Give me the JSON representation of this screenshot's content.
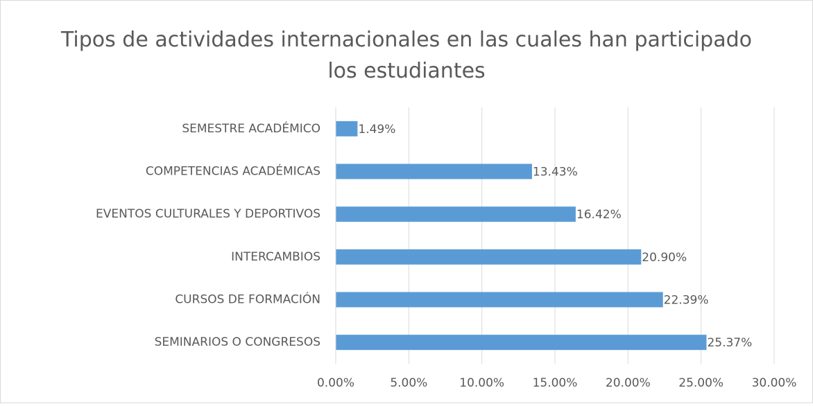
{
  "chart_data": {
    "type": "bar",
    "orientation": "horizontal",
    "title": "Tipos de actividades internacionales en las cuales han participado los estudiantes",
    "categories": [
      "SEMESTRE ACADÉMICO",
      "COMPETENCIAS ACADÉMICAS",
      "EVENTOS CULTURALES Y DEPORTIVOS",
      "INTERCAMBIOS",
      "CURSOS DE FORMACIÓN",
      "SEMINARIOS O CONGRESOS"
    ],
    "values": [
      1.49,
      13.43,
      16.42,
      20.9,
      22.39,
      25.37
    ],
    "value_labels": [
      "1.49%",
      "13.43%",
      "16.42%",
      "20.90%",
      "22.39%",
      "25.37%"
    ],
    "color": "#5b9bd5",
    "xlim": [
      0,
      30
    ],
    "xticks": [
      {
        "value": 0,
        "label": "0.00%"
      },
      {
        "value": 5,
        "label": "5.00%"
      },
      {
        "value": 10,
        "label": "10.00%"
      },
      {
        "value": 15,
        "label": "15.00%"
      },
      {
        "value": 20,
        "label": "20.00%"
      },
      {
        "value": 25,
        "label": "25.00%"
      },
      {
        "value": 30,
        "label": "30.00%"
      }
    ],
    "grid": true
  }
}
